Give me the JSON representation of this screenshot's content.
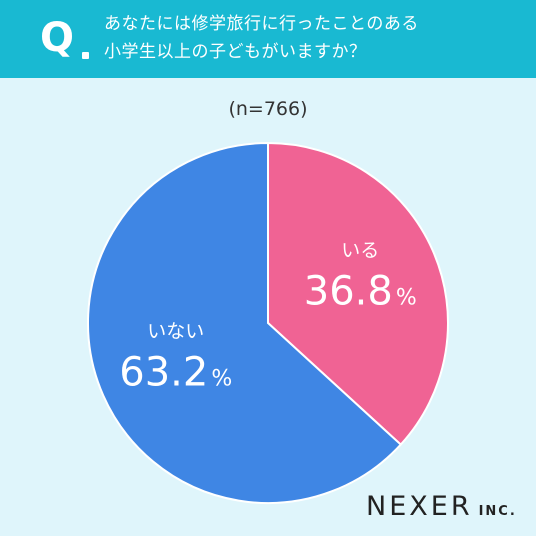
{
  "question": {
    "mark": "Q",
    "lines": [
      "あなたには修学旅行に行ったことのある",
      "小学生以上の子どもがいますか？"
    ]
  },
  "sample_size": "(n=766)",
  "logo": {
    "name": "NEXER",
    "suffix": "INC."
  },
  "chart_data": {
    "type": "pie",
    "slices": [
      {
        "label": "いる",
        "value": 36.8,
        "display": "36.8",
        "unit": "%",
        "color": "#f06394"
      },
      {
        "label": "いない",
        "value": 63.2,
        "display": "63.2",
        "unit": "%",
        "color": "#3f86e4"
      }
    ],
    "start": "12 o'clock",
    "direction": "clockwise"
  }
}
